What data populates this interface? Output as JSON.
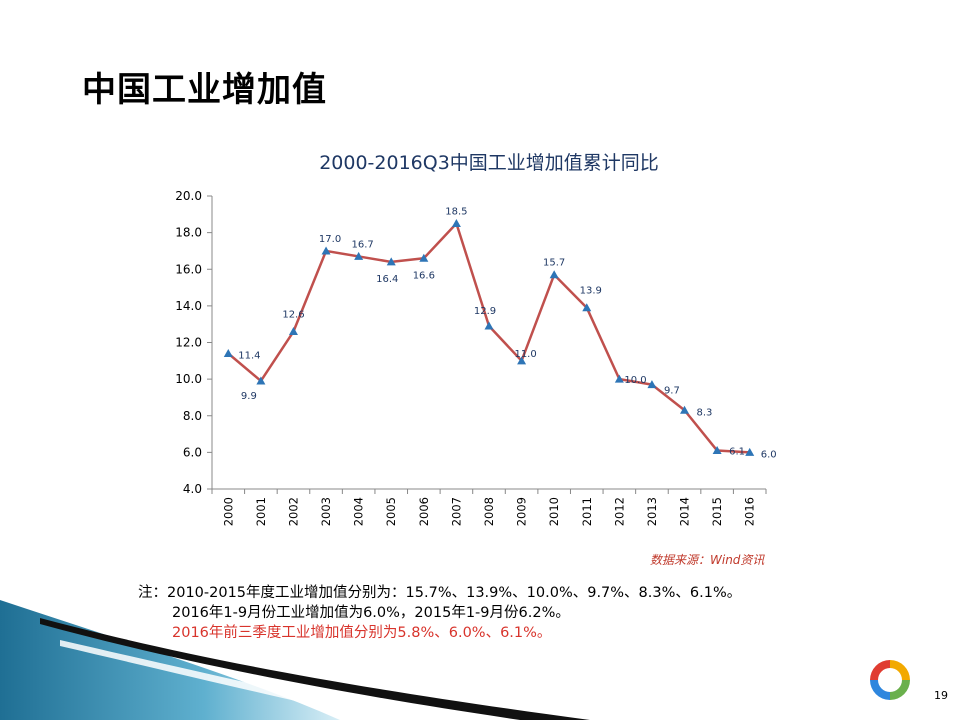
{
  "slide": {
    "title": "中国工业增加值",
    "page_number": "19"
  },
  "chart_data": {
    "type": "line",
    "title": "2000-2016Q3中国工业增加值累计同比",
    "categories": [
      "2000",
      "2001",
      "2002",
      "2003",
      "2004",
      "2005",
      "2006",
      "2007",
      "2008",
      "2009",
      "2010",
      "2011",
      "2012",
      "2013",
      "2014",
      "2015",
      "2016"
    ],
    "series": [
      {
        "values": [
          11.4,
          9.9,
          12.6,
          17.0,
          16.7,
          16.4,
          16.6,
          18.5,
          12.9,
          11.0,
          15.7,
          13.9,
          10.0,
          9.7,
          8.3,
          6.1,
          6.0
        ],
        "labels": [
          "11.4",
          "9.9",
          "12.6",
          "17.0",
          "16.7",
          "16.4",
          "16.6",
          "18.5",
          "12.9",
          "11.0",
          "15.7",
          "13.9",
          "10.0",
          "9.7",
          "8.3",
          "6.1",
          "6.0"
        ],
        "line_color": "#c0504d",
        "marker_color": "#2e75b6",
        "marker": "triangle"
      }
    ],
    "y_ticks": [
      "4.0",
      "6.0",
      "8.0",
      "10.0",
      "12.0",
      "14.0",
      "16.0",
      "18.0",
      "20.0"
    ],
    "ylim": [
      4,
      20
    ],
    "grid": false,
    "legend": "none"
  },
  "source": "数据来源：Wind资讯",
  "notes": [
    "注：2010-2015年度工业增加值分别为：15.7%、13.9%、10.0%、9.7%、8.3%、6.1%。",
    "2016年1-9月份工业增加值为6.0%，2015年1-9月份6.2%。",
    "2016年前三季度工业增加值分别为5.8%、6.0%、6.1%。"
  ],
  "colors": {
    "note_highlight": "#d8342c",
    "title_color": "#1f3864",
    "decor_teal": "#2a7fa3"
  }
}
